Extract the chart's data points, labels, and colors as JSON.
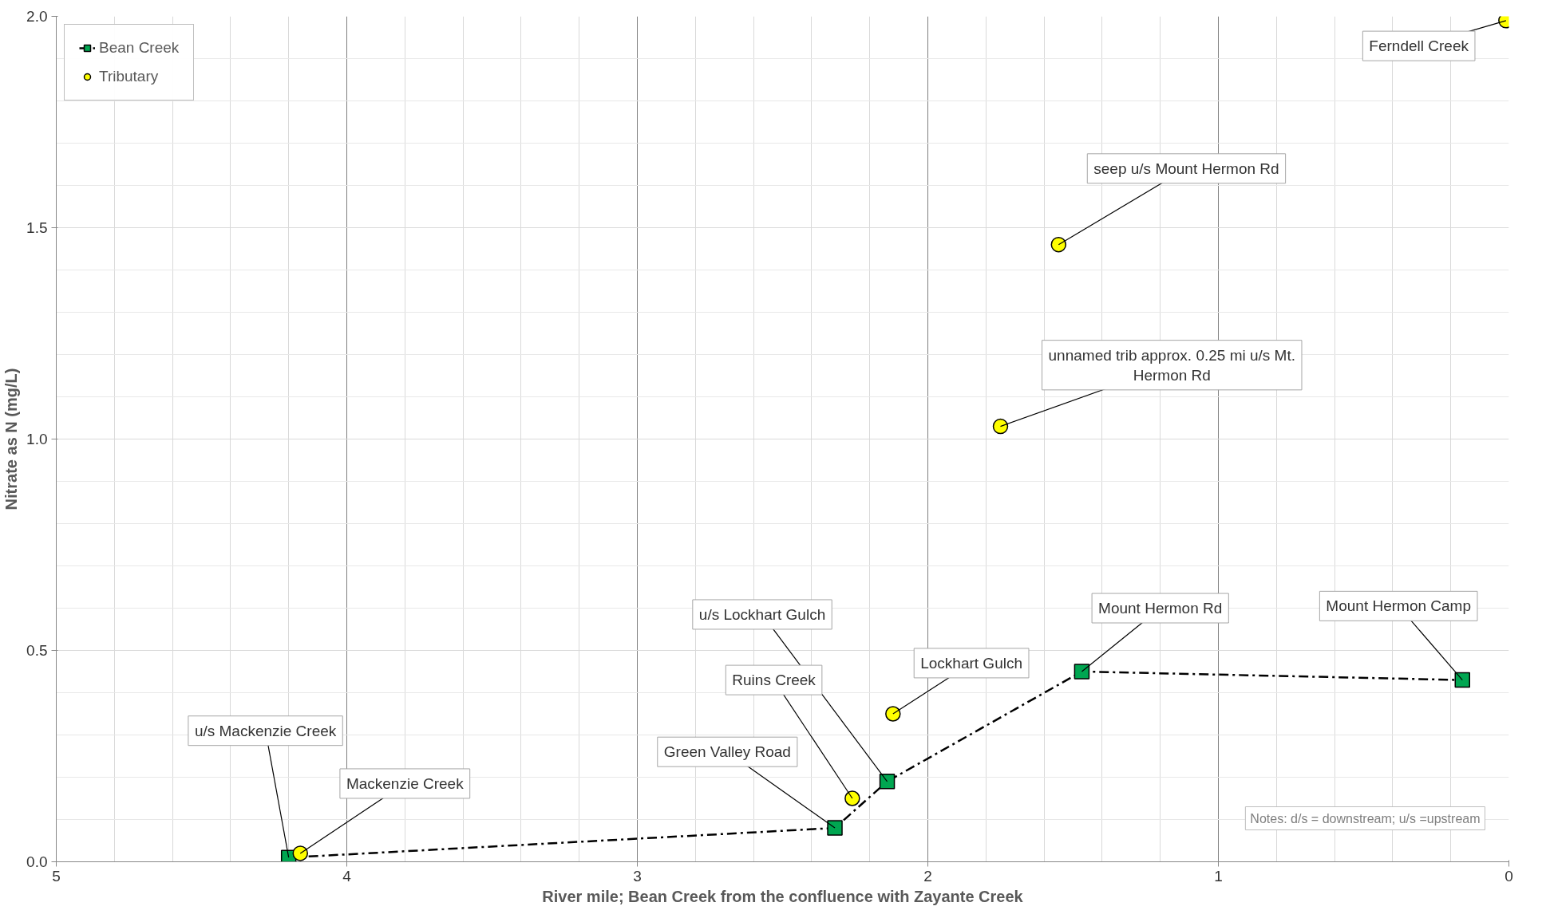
{
  "chart_data": {
    "type": "scatter",
    "xlabel": "River mile; Bean Creek from the confluence with Zayante Creek",
    "ylabel": "Nitrate as N (mg/L)",
    "xlim": [
      5,
      0
    ],
    "xticks": [
      5,
      4,
      3,
      2,
      1,
      0
    ],
    "ylim": [
      0,
      2
    ],
    "yticks": [
      {
        "value": 0,
        "label": "0.0"
      },
      {
        "value": 0.5,
        "label": "0.5"
      },
      {
        "value": 1,
        "label": "1.0"
      },
      {
        "value": 1.5,
        "label": "1.5"
      },
      {
        "value": 2,
        "label": "2.0"
      }
    ],
    "grid": true,
    "legend": "top left",
    "series": [
      {
        "name": "Bean Creek",
        "type": "line",
        "marker": "square",
        "line_style": "dashed",
        "color": "#00a651",
        "x": [
          4.2,
          2.32,
          2.14,
          1.47,
          0.16
        ],
        "values": [
          0.01,
          0.08,
          0.19,
          0.45,
          0.43
        ]
      },
      {
        "name": "Tributary",
        "type": "scatter",
        "marker": "circle",
        "color": "#ffff00",
        "x": [
          4.16,
          2.26,
          2.12,
          1.75,
          1.55,
          0.01
        ],
        "values": [
          0.02,
          0.15,
          0.35,
          1.03,
          1.46,
          1.99
        ]
      }
    ],
    "annotations": [
      {
        "text": "u/s Mackenzie Creek",
        "x": 4.2,
        "y": 0.01
      },
      {
        "text": "Mackenzie Creek",
        "x": 4.16,
        "y": 0.02
      },
      {
        "text": "Green Valley Road",
        "x": 2.32,
        "y": 0.08
      },
      {
        "text": "Ruins Creek",
        "x": 2.26,
        "y": 0.15
      },
      {
        "text": "u/s Lockhart Gulch",
        "x": 2.14,
        "y": 0.19
      },
      {
        "text": "Lockhart Gulch",
        "x": 2.12,
        "y": 0.35
      },
      {
        "text": "Mount Hermon Rd",
        "x": 1.47,
        "y": 0.45
      },
      {
        "text": "Mount Hermon Camp",
        "x": 0.16,
        "y": 0.43
      },
      {
        "text": "unnamed trib approx. 0.25 mi u/s Mt. Hermon Rd",
        "x": 1.75,
        "y": 1.03
      },
      {
        "text": "seep u/s Mount Hermon Rd",
        "x": 1.55,
        "y": 1.46
      },
      {
        "text": "Ferndell Creek",
        "x": 0.01,
        "y": 1.99
      },
      "Notes: d/s = downstream; u/s =upstream"
    ]
  }
}
